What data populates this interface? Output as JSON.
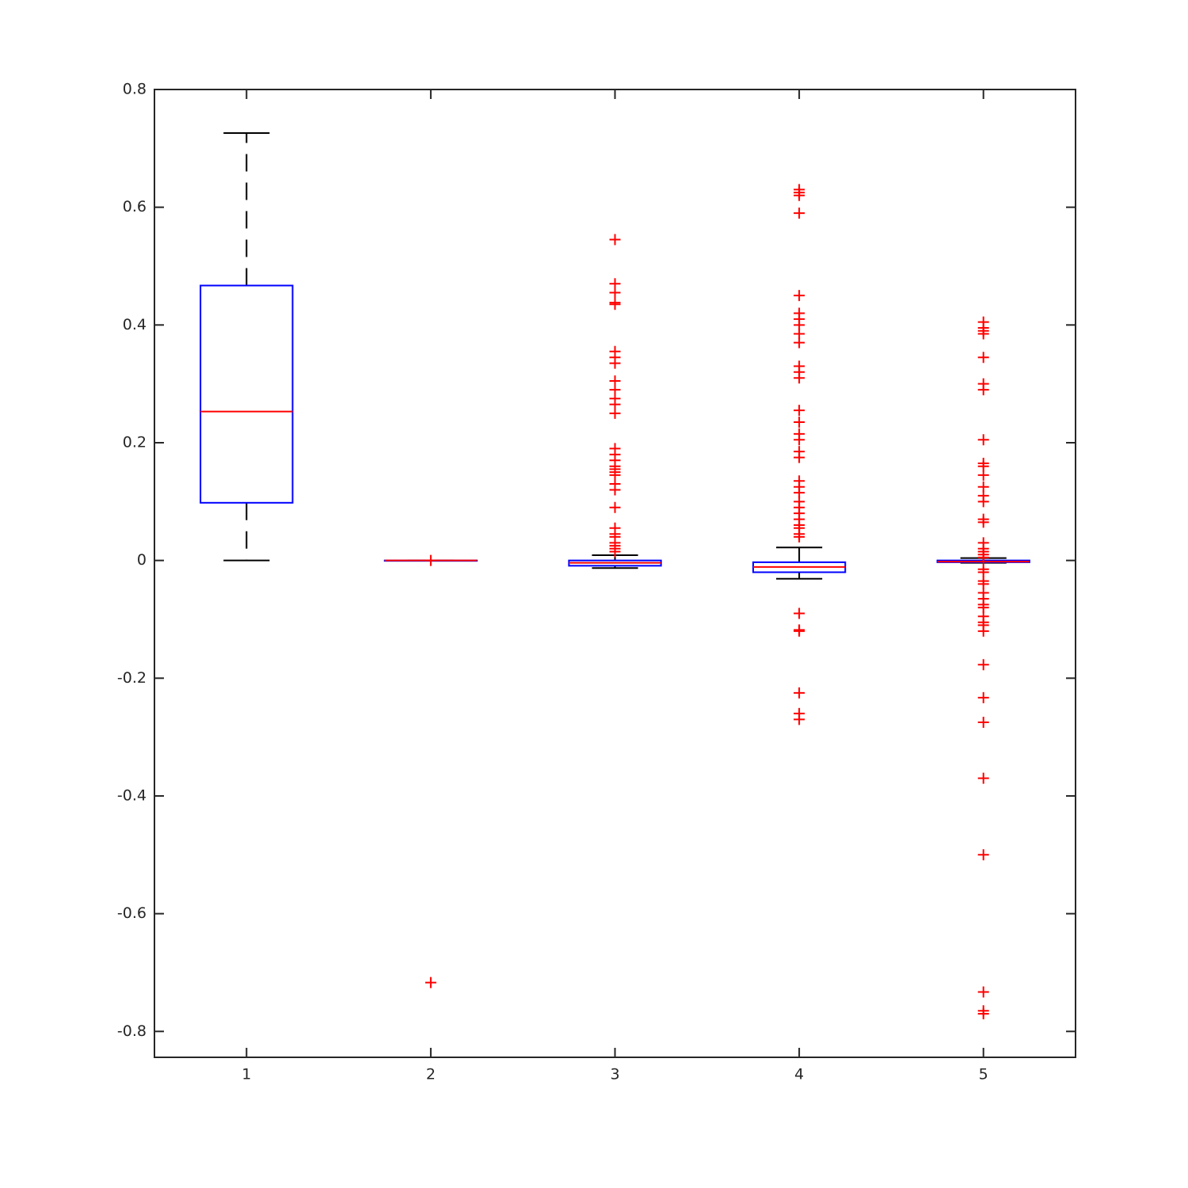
{
  "chart_data": {
    "type": "box",
    "categories": [
      "1",
      "2",
      "3",
      "4",
      "5"
    ],
    "box_color": "#0000ff",
    "median_color": "#ff0000",
    "whisker_color": "#000000",
    "outlier_color": "#ff0000",
    "ylim": [
      -0.844,
      0.8
    ],
    "yticks": [
      -0.8,
      -0.6,
      -0.4,
      -0.2,
      0,
      0.2,
      0.4,
      0.6,
      0.8
    ],
    "boxes": [
      {
        "whisker_low": 0,
        "q1": 0.098,
        "median": 0.253,
        "q3": 0.467,
        "whisker_high": 0.726,
        "outliers": []
      },
      {
        "whisker_low": 0,
        "q1": 0,
        "median": 0,
        "q3": 0,
        "whisker_high": 0,
        "outliers": [
          0,
          -0.717
        ]
      },
      {
        "whisker_low": -0.013,
        "q1": -0.009,
        "median": -0.004,
        "q3": 0.0,
        "whisker_high": 0.009,
        "outliers": [
          0.545,
          0.47,
          0.455,
          0.438,
          0.435,
          0.355,
          0.345,
          0.335,
          0.305,
          0.29,
          0.275,
          0.265,
          0.25,
          0.19,
          0.18,
          0.17,
          0.16,
          0.155,
          0.15,
          0.145,
          0.13,
          0.12,
          0.09,
          0.055,
          0.045,
          0.04,
          0.03,
          0.025,
          0.02,
          0.015
        ]
      },
      {
        "whisker_low": -0.031,
        "q1": -0.02,
        "median": -0.011,
        "q3": -0.003,
        "whisker_high": 0.022,
        "outliers": [
          0.63,
          0.625,
          0.62,
          0.59,
          0.45,
          0.42,
          0.41,
          0.4,
          0.385,
          0.37,
          0.33,
          0.32,
          0.31,
          0.255,
          0.235,
          0.215,
          0.205,
          0.185,
          0.175,
          0.135,
          0.125,
          0.115,
          0.1,
          0.09,
          0.08,
          0.07,
          0.06,
          0.055,
          0.045,
          0.04,
          -0.09,
          -0.118,
          -0.12,
          -0.225,
          -0.26,
          -0.27
        ]
      },
      {
        "whisker_low": -0.004,
        "q1": -0.003,
        "median": -0.002,
        "q3": 0.0,
        "whisker_high": 0.004,
        "outliers": [
          0.405,
          0.395,
          0.39,
          0.385,
          0.345,
          0.3,
          0.29,
          0.205,
          0.165,
          0.16,
          0.145,
          0.125,
          0.11,
          0.1,
          0.07,
          0.065,
          0.03,
          0.02,
          0.015,
          0.01,
          0.005,
          -0.015,
          -0.02,
          -0.035,
          -0.04,
          -0.055,
          -0.065,
          -0.075,
          -0.08,
          -0.095,
          -0.105,
          -0.11,
          -0.12,
          -0.177,
          -0.233,
          -0.275,
          -0.37,
          -0.5,
          -0.733,
          -0.765,
          -0.77
        ]
      }
    ]
  }
}
